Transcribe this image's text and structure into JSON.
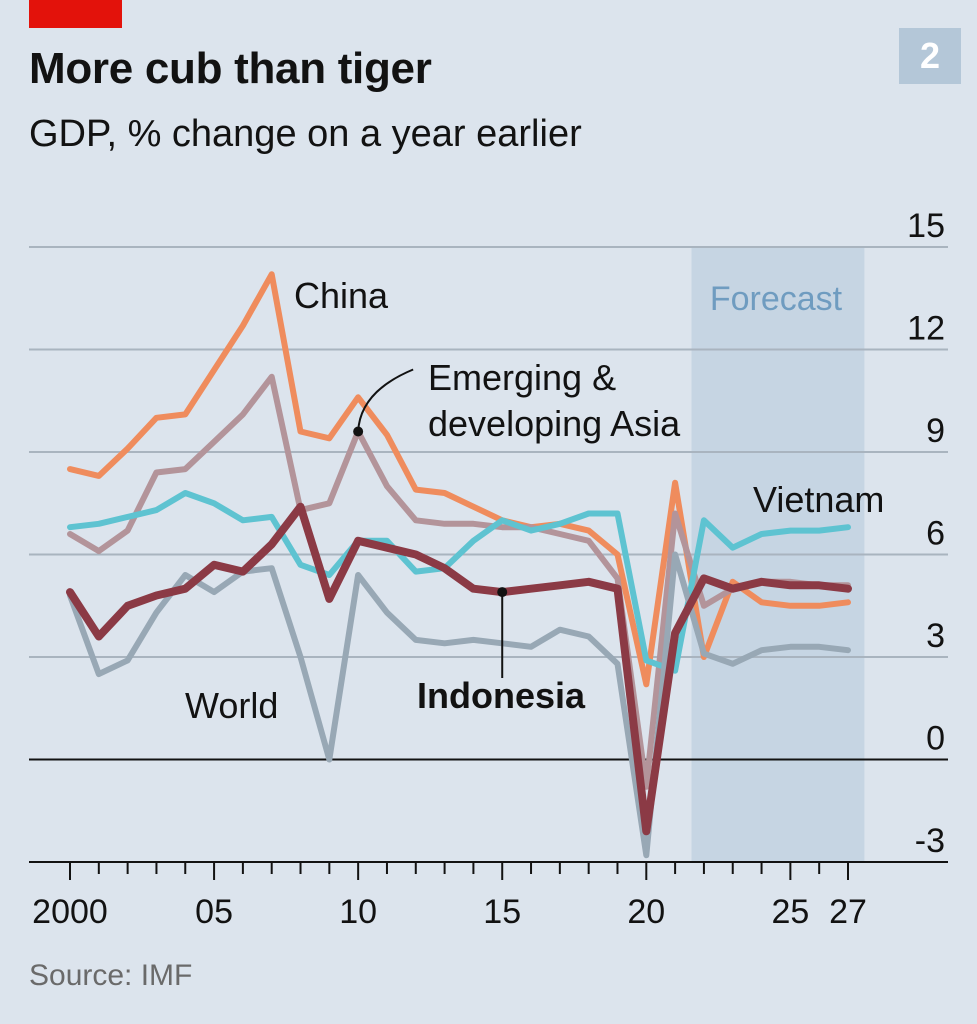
{
  "header": {
    "title": "More cub than tiger",
    "subtitle": "GDP, % change on a year earlier",
    "chart_number": "2"
  },
  "source": "Source: IMF",
  "colors": {
    "accent_tag": "#e3120b",
    "background": "#dce4ed",
    "forecast_shade": "#c6d5e3",
    "gridline": "#a9b4bf"
  },
  "chart_data": {
    "type": "line",
    "title": "More cub than tiger",
    "subtitle": "GDP, % change on a year earlier",
    "xlabel": "",
    "ylabel": "",
    "x": [
      2000,
      2001,
      2002,
      2003,
      2004,
      2005,
      2006,
      2007,
      2008,
      2009,
      2010,
      2011,
      2012,
      2013,
      2014,
      2015,
      2016,
      2017,
      2018,
      2019,
      2020,
      2021,
      2022,
      2023,
      2024,
      2025,
      2026,
      2027
    ],
    "x_tick_labels": [
      {
        "x": 2000,
        "label": "2000"
      },
      {
        "x": 2005,
        "label": "05"
      },
      {
        "x": 2010,
        "label": "10"
      },
      {
        "x": 2015,
        "label": "15"
      },
      {
        "x": 2020,
        "label": "20"
      },
      {
        "x": 2025,
        "label": "25"
      },
      {
        "x": 2027,
        "label": "27"
      }
    ],
    "y_ticks": [
      -3,
      0,
      3,
      6,
      9,
      12,
      15
    ],
    "ylim": [
      -3,
      15
    ],
    "grid": true,
    "y_axis_side": "right",
    "forecast": {
      "label": "Forecast",
      "from": 2021.5,
      "to": 2027.5
    },
    "series": [
      {
        "name": "China",
        "color": "#ef8c5d",
        "width": 6,
        "values": [
          8.5,
          8.3,
          9.1,
          10.0,
          10.1,
          11.4,
          12.7,
          14.2,
          9.6,
          9.4,
          10.6,
          9.5,
          7.9,
          7.8,
          7.4,
          7.0,
          6.8,
          6.9,
          6.7,
          6.0,
          2.2,
          8.1,
          3.0,
          5.2,
          4.6,
          4.5,
          4.5,
          4.6
        ]
      },
      {
        "name": "Emerging & developing Asia",
        "color": "#b3949a",
        "width": 6,
        "values": [
          6.6,
          6.1,
          6.7,
          8.4,
          8.5,
          9.3,
          10.1,
          11.2,
          7.3,
          7.5,
          9.6,
          8.0,
          7.0,
          6.9,
          6.9,
          6.8,
          6.8,
          6.6,
          6.4,
          5.3,
          -0.8,
          7.2,
          4.5,
          5.0,
          5.2,
          5.2,
          5.1,
          5.1
        ]
      },
      {
        "name": "Vietnam",
        "color": "#5ec3d1",
        "width": 6,
        "values": [
          6.8,
          6.9,
          7.1,
          7.3,
          7.8,
          7.5,
          7.0,
          7.1,
          5.7,
          5.4,
          6.4,
          6.4,
          5.5,
          5.6,
          6.4,
          7.0,
          6.7,
          6.9,
          7.2,
          7.2,
          2.9,
          2.6,
          7.0,
          6.2,
          6.6,
          6.7,
          6.7,
          6.8
        ]
      },
      {
        "name": "World",
        "color": "#98a8b5",
        "width": 6,
        "values": [
          4.8,
          2.5,
          2.9,
          4.3,
          5.4,
          4.9,
          5.5,
          5.6,
          3.0,
          0.0,
          5.4,
          4.3,
          3.5,
          3.4,
          3.5,
          3.4,
          3.3,
          3.8,
          3.6,
          2.8,
          -2.8,
          6.0,
          3.1,
          2.8,
          3.2,
          3.3,
          3.3,
          3.2
        ]
      },
      {
        "name": "Indonesia",
        "color": "#8b3a45",
        "width": 8,
        "values": [
          4.9,
          3.6,
          4.5,
          4.8,
          5.0,
          5.7,
          5.5,
          6.3,
          7.4,
          4.7,
          6.4,
          6.2,
          6.0,
          5.6,
          5.0,
          4.9,
          5.0,
          5.1,
          5.2,
          5.0,
          -2.1,
          3.7,
          5.3,
          5.0,
          5.2,
          5.1,
          5.1,
          5.0
        ]
      }
    ],
    "annotations": [
      {
        "series": "China",
        "text_lines": [
          "China"
        ]
      },
      {
        "series": "Emerging & developing Asia",
        "text_lines": [
          "Emerging &",
          "developing Asia"
        ],
        "points_to_x": 2010
      },
      {
        "series": "Vietnam",
        "text_lines": [
          "Vietnam"
        ]
      },
      {
        "series": "World",
        "text_lines": [
          "World"
        ]
      },
      {
        "series": "Indonesia",
        "text_lines": [
          "Indonesia"
        ],
        "points_to_x": 2015
      }
    ]
  }
}
